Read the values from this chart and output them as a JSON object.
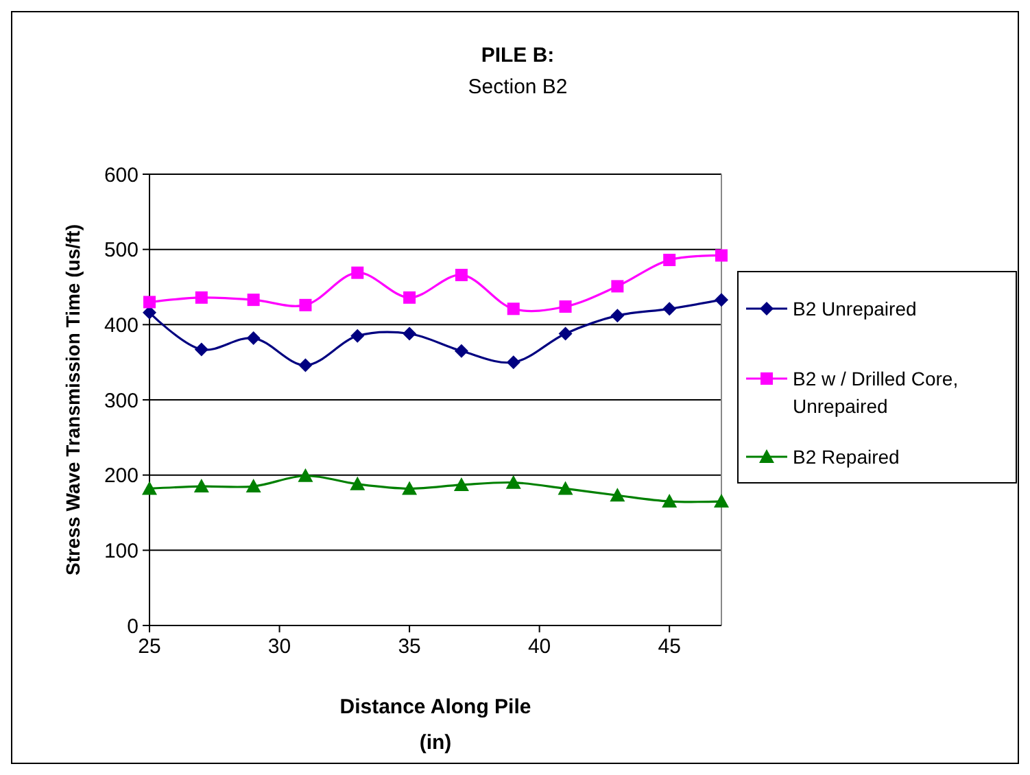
{
  "chart_data": {
    "type": "line",
    "title": "PILE B:",
    "subtitle": "Section B2",
    "xlabel": "Distance Along Pile\n(in)",
    "ylabel": "Stress Wave Transmission Time  (us/ft)",
    "x": [
      25,
      27,
      29,
      31,
      33,
      35,
      37,
      39,
      41,
      43,
      45,
      47
    ],
    "series": [
      {
        "name": "B2 Unrepaired",
        "color": "#000080",
        "marker": "diamond",
        "values": [
          416,
          367,
          382,
          346,
          385,
          388,
          365,
          350,
          388,
          412,
          421,
          433
        ]
      },
      {
        "name": "B2 w / Drilled Core, Unrepaired",
        "color": "#ff00ff",
        "marker": "square",
        "values": [
          430,
          436,
          433,
          426,
          469,
          436,
          466,
          421,
          424,
          451,
          486,
          492
        ]
      },
      {
        "name": "B2 Repaired",
        "color": "#008000",
        "marker": "triangle",
        "values": [
          182,
          185,
          185,
          199,
          188,
          182,
          187,
          190,
          182,
          173,
          165,
          165
        ]
      }
    ],
    "xlim": [
      25,
      47
    ],
    "xticks": [
      25,
      30,
      35,
      40,
      45
    ],
    "ylim": [
      0,
      600
    ],
    "yticks": [
      0,
      100,
      200,
      300,
      400,
      500,
      600
    ],
    "grid": "y",
    "legend": "right"
  }
}
